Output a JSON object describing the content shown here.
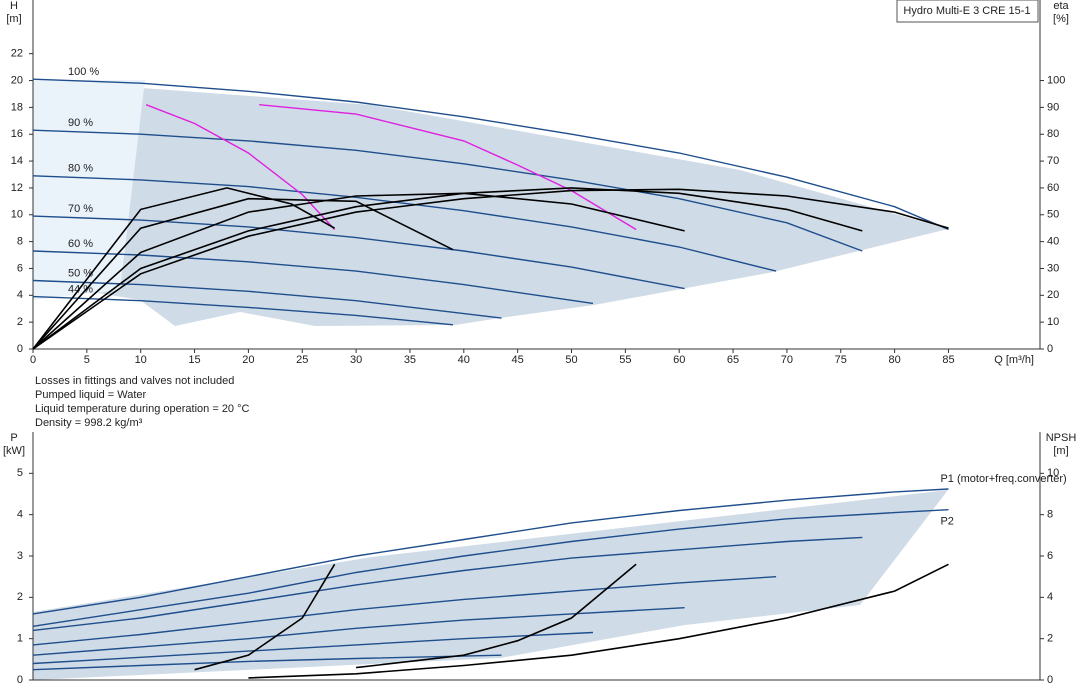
{
  "chart_data": [
    {
      "type": "line",
      "y_label": [
        "H",
        "[m]"
      ],
      "y2_label": [
        "eta",
        "[%]"
      ],
      "x_label": "Q [m³/h]",
      "box_title": "Hydro Multi-E 3 CRE 15-1",
      "xlim": [
        0,
        93.5
      ],
      "xticks": [
        0,
        5,
        10,
        15,
        20,
        25,
        30,
        35,
        40,
        45,
        50,
        55,
        60,
        65,
        70,
        75,
        80,
        85
      ],
      "ylim": [
        0,
        26
      ],
      "yticks": [
        0,
        2,
        4,
        6,
        8,
        10,
        12,
        14,
        16,
        18,
        20,
        22
      ],
      "y2lim": [
        0,
        130
      ],
      "y2ticks": [
        0,
        10,
        20,
        30,
        40,
        50,
        60,
        70,
        80,
        90,
        100
      ],
      "series": [
        {
          "name": "100 %",
          "color": "#1f4e8c",
          "x": [
            0,
            10,
            20,
            30,
            40,
            50,
            60,
            70,
            80,
            85
          ],
          "values": [
            20.1,
            19.8,
            19.2,
            18.4,
            17.3,
            16.0,
            14.6,
            12.8,
            10.6,
            8.9
          ]
        },
        {
          "name": "90 %",
          "color": "#1f4e8c",
          "x": [
            0,
            10,
            20,
            30,
            40,
            50,
            60,
            70,
            77
          ],
          "values": [
            16.3,
            16.0,
            15.5,
            14.8,
            13.8,
            12.6,
            11.2,
            9.4,
            7.3
          ]
        },
        {
          "name": "80 %",
          "color": "#1f4e8c",
          "x": [
            0,
            10,
            20,
            30,
            40,
            50,
            60,
            69
          ],
          "values": [
            12.9,
            12.6,
            12.1,
            11.3,
            10.3,
            9.1,
            7.6,
            5.8
          ]
        },
        {
          "name": "70 %",
          "color": "#1f4e8c",
          "x": [
            0,
            10,
            20,
            30,
            40,
            50,
            60.5
          ],
          "values": [
            9.9,
            9.6,
            9.1,
            8.3,
            7.3,
            6.1,
            4.5
          ]
        },
        {
          "name": "60 %",
          "color": "#1f4e8c",
          "x": [
            0,
            10,
            20,
            30,
            40,
            52
          ],
          "values": [
            7.3,
            7.0,
            6.5,
            5.8,
            4.8,
            3.4
          ]
        },
        {
          "name": "50 %",
          "color": "#1f4e8c",
          "x": [
            0,
            10,
            20,
            30,
            43.5
          ],
          "values": [
            5.1,
            4.8,
            4.3,
            3.6,
            2.3
          ]
        },
        {
          "name": "44 %",
          "color": "#1f4e8c",
          "x": [
            0,
            10,
            20,
            30,
            39
          ],
          "values": [
            3.9,
            3.6,
            3.1,
            2.5,
            1.8
          ]
        },
        {
          "color": "#e020e0",
          "x": [
            10.5,
            15,
            20,
            25,
            28
          ],
          "values": [
            18.2,
            16.8,
            14.6,
            11.5,
            8.9
          ]
        },
        {
          "color": "#e020e0",
          "x": [
            21,
            30,
            40,
            45,
            50,
            56
          ],
          "values": [
            18.2,
            17.5,
            15.5,
            13.7,
            11.8,
            8.9
          ]
        },
        {
          "color": "#000000",
          "axis": "y2",
          "x": [
            0,
            10,
            20,
            30,
            40,
            50,
            60,
            70,
            80,
            85
          ],
          "values": [
            0,
            28,
            42,
            51,
            56,
            59,
            59.5,
            57,
            51,
            45
          ]
        },
        {
          "color": "#000000",
          "axis": "y2",
          "x": [
            0,
            10,
            20,
            30,
            40,
            50,
            60,
            70,
            77
          ],
          "values": [
            0,
            30,
            44,
            53,
            58,
            60,
            58,
            52,
            44
          ]
        },
        {
          "color": "#000000",
          "axis": "y2",
          "x": [
            0,
            10,
            20,
            30,
            40,
            50,
            60.5
          ],
          "values": [
            0,
            36,
            51,
            57,
            58,
            54,
            44
          ]
        },
        {
          "color": "#000000",
          "axis": "y2",
          "x": [
            0,
            10,
            20,
            30,
            39
          ],
          "values": [
            0,
            45,
            56,
            55,
            37
          ]
        },
        {
          "color": "#000000",
          "axis": "y2",
          "x": [
            0,
            10,
            18,
            24,
            28
          ],
          "values": [
            0,
            52,
            60,
            54,
            45
          ]
        }
      ]
    },
    {
      "type": "line",
      "y_label": [
        "P",
        "[kW]"
      ],
      "y2_label": [
        "NPSH",
        "[m]"
      ],
      "xlim": [
        0,
        93.5
      ],
      "ylim": [
        0,
        6
      ],
      "yticks": [
        0,
        1,
        2,
        3,
        4,
        5
      ],
      "y2lim": [
        0,
        12
      ],
      "y2ticks": [
        0,
        2,
        4,
        6,
        8,
        10
      ],
      "series": [
        {
          "name": "P1 (motor+freq.converter)",
          "color": "#1f4e8c",
          "x": [
            0,
            10,
            20,
            30,
            40,
            50,
            60,
            70,
            80,
            85
          ],
          "values": [
            1.6,
            2.0,
            2.5,
            3.0,
            3.4,
            3.8,
            4.1,
            4.35,
            4.55,
            4.62
          ]
        },
        {
          "name": "P2",
          "color": "#1f4e8c",
          "x": [
            0,
            10,
            20,
            30,
            40,
            50,
            60,
            70,
            80,
            85
          ],
          "values": [
            1.3,
            1.7,
            2.1,
            2.6,
            3.0,
            3.35,
            3.65,
            3.9,
            4.05,
            4.12
          ]
        },
        {
          "color": "#1f4e8c",
          "x": [
            0,
            10,
            20,
            30,
            40,
            50,
            60,
            70,
            77
          ],
          "values": [
            1.2,
            1.5,
            1.9,
            2.3,
            2.65,
            2.95,
            3.15,
            3.35,
            3.45
          ]
        },
        {
          "color": "#1f4e8c",
          "x": [
            0,
            10,
            20,
            30,
            40,
            50,
            60,
            69
          ],
          "values": [
            0.85,
            1.1,
            1.4,
            1.7,
            1.95,
            2.15,
            2.35,
            2.5
          ]
        },
        {
          "color": "#1f4e8c",
          "x": [
            0,
            10,
            20,
            30,
            40,
            50,
            60.5
          ],
          "values": [
            0.6,
            0.8,
            1.0,
            1.25,
            1.45,
            1.6,
            1.75
          ]
        },
        {
          "color": "#1f4e8c",
          "x": [
            0,
            10,
            20,
            30,
            40,
            52
          ],
          "values": [
            0.4,
            0.55,
            0.7,
            0.85,
            1.0,
            1.15
          ]
        },
        {
          "color": "#1f4e8c",
          "x": [
            0,
            10,
            20,
            30,
            43.5
          ],
          "values": [
            0.25,
            0.35,
            0.45,
            0.52,
            0.6
          ]
        },
        {
          "color": "#000000",
          "axis": "y2",
          "x": [
            20,
            30,
            40,
            50,
            60,
            70,
            80,
            85
          ],
          "values": [
            0.1,
            0.3,
            0.7,
            1.2,
            2.0,
            3.0,
            4.3,
            5.6
          ]
        },
        {
          "color": "#000000",
          "axis": "y2",
          "x": [
            15,
            20,
            25,
            28
          ],
          "values": [
            0.5,
            1.2,
            3.0,
            5.6
          ]
        },
        {
          "color": "#000000",
          "axis": "y2",
          "x": [
            30,
            40,
            45,
            50,
            56
          ],
          "values": [
            0.6,
            1.2,
            1.9,
            3.0,
            5.6
          ]
        }
      ]
    }
  ],
  "notes": [
    "Losses in fittings and valves not included",
    "Pumped liquid = Water",
    "Liquid temperature during operation = 20 °C",
    "Density = 998.2 kg/m³"
  ]
}
